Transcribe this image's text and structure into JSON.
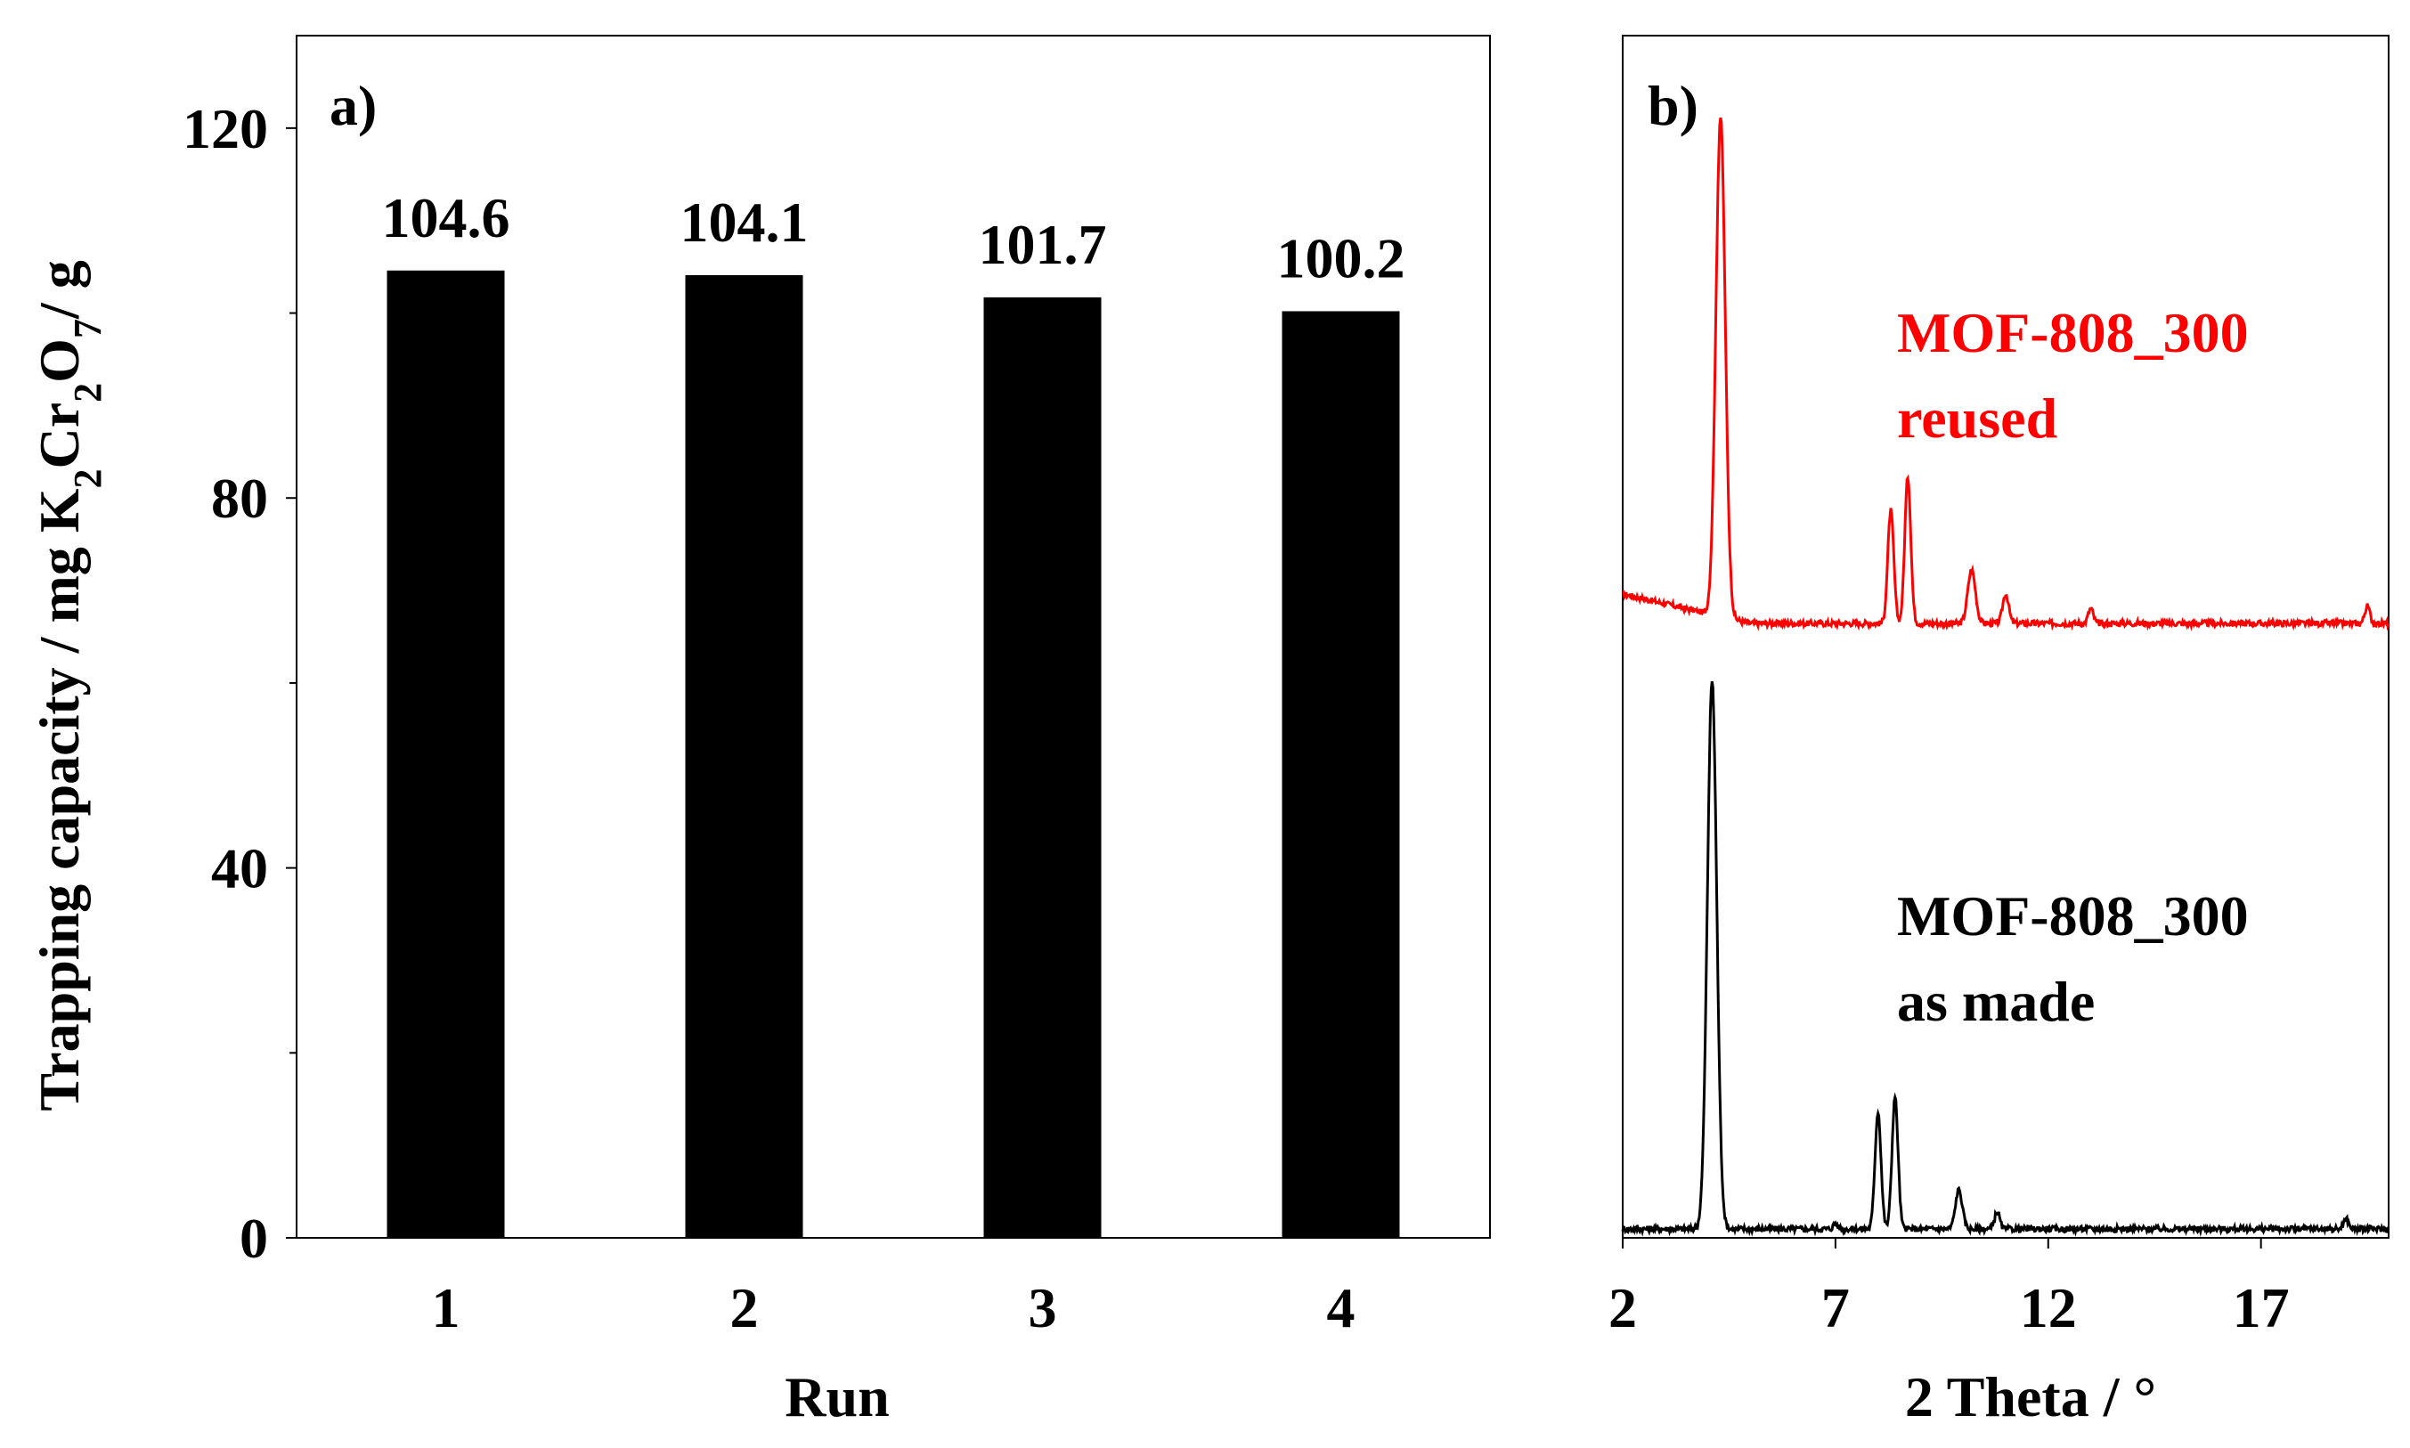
{
  "chart_data": [
    {
      "panel": "a)",
      "type": "bar",
      "categories": [
        "1",
        "2",
        "3",
        "4"
      ],
      "values": [
        104.6,
        104.1,
        101.7,
        100.2
      ],
      "value_labels": [
        "104.6",
        "104.1",
        "101.7",
        "100.2"
      ],
      "xlabel": "Run",
      "ylabel": {
        "parts": [
          {
            "t": "Trapping capacity / mg K",
            "sub": false
          },
          {
            "t": "2",
            "sub": true
          },
          {
            "t": "Cr",
            "sub": false
          },
          {
            "t": "2",
            "sub": true
          },
          {
            "t": "O",
            "sub": false
          },
          {
            "t": "7",
            "sub": true
          },
          {
            "t": "/ g",
            "sub": false
          }
        ]
      },
      "ylim": [
        0,
        130
      ],
      "yticks": [
        0,
        40,
        80,
        120
      ],
      "ytick_labels": [
        "0",
        "40",
        "80",
        "120"
      ],
      "bar_color": "#000000",
      "grid": false
    },
    {
      "panel": "b)",
      "type": "line",
      "xlabel": "2 Theta / °",
      "xlim": [
        2,
        20
      ],
      "xticks": [
        2,
        7,
        12,
        17
      ],
      "xtick_labels": [
        "2",
        "7",
        "12",
        "17"
      ],
      "ylabel": "",
      "series": [
        {
          "name": "MOF-808_300 reused",
          "label_lines": [
            "MOF-808_300",
            "reused"
          ],
          "color": "#ff0000",
          "baseline": 0.6,
          "peaks": [
            [
              4.3,
              10.2,
              0.11
            ],
            [
              8.3,
              2.3,
              0.07
            ],
            [
              8.7,
              3.0,
              0.07
            ],
            [
              10.2,
              1.1,
              0.09
            ],
            [
              11.0,
              0.6,
              0.07
            ],
            [
              13.0,
              0.3,
              0.06
            ],
            [
              19.5,
              0.35,
              0.06
            ]
          ]
        },
        {
          "name": "MOF-808_300 as made",
          "label_lines": [
            "MOF-808_300",
            "as made"
          ],
          "color": "#000000",
          "baseline": 0.0,
          "peaks": [
            [
              4.1,
              11.2,
              0.11
            ],
            [
              8.0,
              2.4,
              0.07
            ],
            [
              8.4,
              2.7,
              0.07
            ],
            [
              9.9,
              0.8,
              0.08
            ],
            [
              10.8,
              0.35,
              0.06
            ],
            [
              7.0,
              0.12,
              0.05
            ],
            [
              19.0,
              0.2,
              0.06
            ]
          ]
        }
      ],
      "grid": false
    }
  ]
}
